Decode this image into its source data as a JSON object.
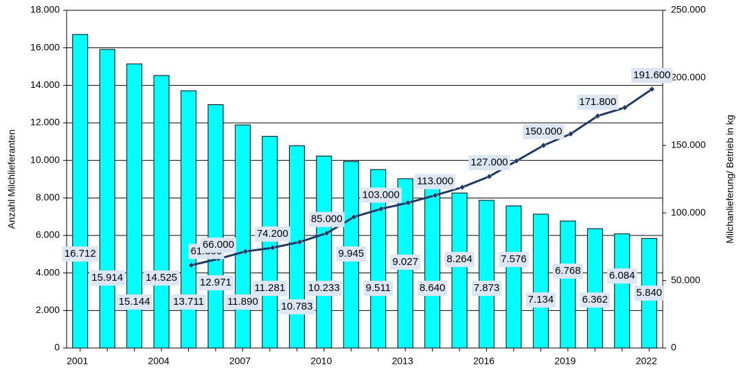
{
  "chart_data": {
    "type": "bar-line",
    "categories": [
      "2001",
      null,
      null,
      "2004",
      null,
      null,
      "2007",
      null,
      null,
      "2010",
      null,
      null,
      "2013",
      null,
      null,
      "2016",
      null,
      null,
      "2019",
      null,
      null,
      "2022"
    ],
    "series": [
      {
        "name": "Anzahl Milchlieferanten",
        "type": "bar",
        "color": "#00ffff",
        "values": [
          16712,
          15914,
          15144,
          14525,
          13711,
          12971,
          11890,
          11281,
          10783,
          10233,
          9945,
          9511,
          9027,
          8640,
          8264,
          7873,
          7576,
          7134,
          6768,
          6362,
          6084,
          5840
        ],
        "value_labels": [
          "16.712",
          "15.914",
          "15.144",
          "14.525",
          "13.711",
          "12.971",
          "11.890",
          "11.281",
          "10.783",
          "10.233",
          "9.945",
          "9.511",
          "9.027",
          "8.640",
          "8.264",
          "7.873",
          "7.576",
          "7.134",
          "6.768",
          "6.362",
          "6.084",
          "5.840"
        ]
      },
      {
        "name": "Milchanlieferung/ Betrieb in kg",
        "type": "line",
        "axis": "y2",
        "color": "#1f3864",
        "values": [
          null,
          null,
          null,
          null,
          61300,
          66000,
          71500,
          74200,
          78500,
          85000,
          97000,
          103000,
          107500,
          113000,
          119000,
          127000,
          138500,
          150000,
          158500,
          171800,
          178000,
          191600
        ],
        "value_labels": [
          null,
          null,
          null,
          null,
          "61.300",
          "66.000",
          null,
          "74.200",
          null,
          "85.000",
          null,
          "103.000",
          null,
          "113.000",
          null,
          "127.000",
          null,
          "150.000",
          null,
          "171.800",
          null,
          "191.600"
        ]
      }
    ],
    "ylabel": "Anzahl Milchlieferanten",
    "y2label": "Milchanlieferung/ Betrieb in kg",
    "ylim": [
      0,
      18000
    ],
    "yticks": [
      0,
      {
        "value": 2000,
        "label": "2.000"
      },
      {
        "value": 4000,
        "label": "4.000"
      },
      {
        "value": 6000,
        "label": "6.000"
      },
      {
        "value": 8000,
        "label": "8.000"
      },
      {
        "value": 10000,
        "label": "10.000"
      },
      {
        "value": 12000,
        "label": "12.000"
      },
      {
        "value": 14000,
        "label": "14.000"
      },
      {
        "value": 16000,
        "label": "16.000"
      },
      {
        "value": 18000,
        "label": "18.000"
      }
    ],
    "y2lim": [
      0,
      250000
    ],
    "y2ticks": [
      0,
      {
        "value": 50000,
        "label": "50.000"
      },
      {
        "value": 100000,
        "label": "100.000"
      },
      {
        "value": 150000,
        "label": "150.000"
      },
      {
        "value": 200000,
        "label": "200.000"
      },
      {
        "value": 250000,
        "label": "250.000"
      }
    ],
    "grid": true
  }
}
